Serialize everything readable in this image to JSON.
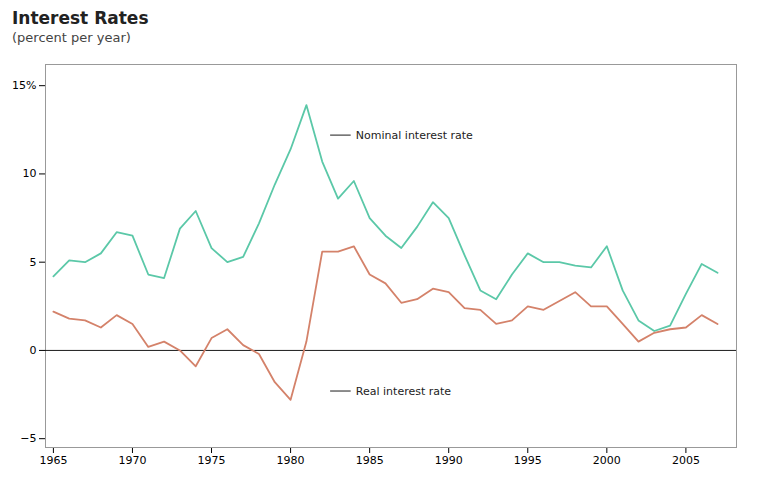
{
  "chart_data": {
    "type": "line",
    "title": "Interest Rates",
    "subtitle": "(percent per year)",
    "x": [
      1965,
      1966,
      1967,
      1968,
      1969,
      1970,
      1971,
      1972,
      1973,
      1974,
      1975,
      1976,
      1977,
      1978,
      1979,
      1980,
      1981,
      1982,
      1983,
      1984,
      1985,
      1986,
      1987,
      1988,
      1989,
      1990,
      1991,
      1992,
      1993,
      1994,
      1995,
      1996,
      1997,
      1998,
      1999,
      2000,
      2001,
      2002,
      2003,
      2004,
      2005,
      2006,
      2007
    ],
    "series": [
      {
        "name": "Nominal interest rate",
        "color": "#5bc8a8",
        "values": [
          4.2,
          5.1,
          5.0,
          5.5,
          6.7,
          6.5,
          4.3,
          4.1,
          6.9,
          7.9,
          5.8,
          5.0,
          5.3,
          7.2,
          9.4,
          11.4,
          13.9,
          10.7,
          8.6,
          9.6,
          7.5,
          6.5,
          5.8,
          7.0,
          8.4,
          7.5,
          5.4,
          3.4,
          2.9,
          4.3,
          5.5,
          5.0,
          5.0,
          4.8,
          4.7,
          5.9,
          3.4,
          1.7,
          1.1,
          1.4,
          3.2,
          4.9,
          4.4
        ]
      },
      {
        "name": "Real interest rate",
        "color": "#d4826a",
        "values": [
          2.2,
          1.8,
          1.7,
          1.3,
          2.0,
          1.5,
          0.2,
          0.5,
          0.0,
          -0.9,
          0.7,
          1.2,
          0.3,
          -0.2,
          -1.8,
          -2.8,
          0.5,
          5.6,
          5.6,
          5.9,
          4.3,
          3.8,
          2.7,
          2.9,
          3.5,
          3.3,
          2.4,
          2.3,
          1.5,
          1.7,
          2.5,
          2.3,
          2.8,
          3.3,
          2.5,
          2.5,
          1.5,
          0.5,
          1.0,
          1.2,
          1.3,
          2.0,
          1.5
        ]
      }
    ],
    "xlim": [
      1964.5,
      2008.2
    ],
    "ylim": [
      -5.5,
      16.2
    ],
    "xticks": [
      1965,
      1970,
      1975,
      1980,
      1985,
      1990,
      1995,
      2000,
      2005
    ],
    "yticks": [
      {
        "value": -5,
        "label": "−5"
      },
      0,
      5,
      10,
      {
        "value": 15,
        "label": "15%"
      }
    ],
    "grid": false,
    "annotations": [
      {
        "text": "Nominal interest rate",
        "x": 1984.0,
        "y": 12.2,
        "line_x": [
          1982.5,
          1983.8
        ]
      },
      {
        "text": "Real interest rate",
        "x": 1984.0,
        "y": -2.3,
        "line_x": [
          1982.5,
          1983.8
        ]
      }
    ]
  }
}
